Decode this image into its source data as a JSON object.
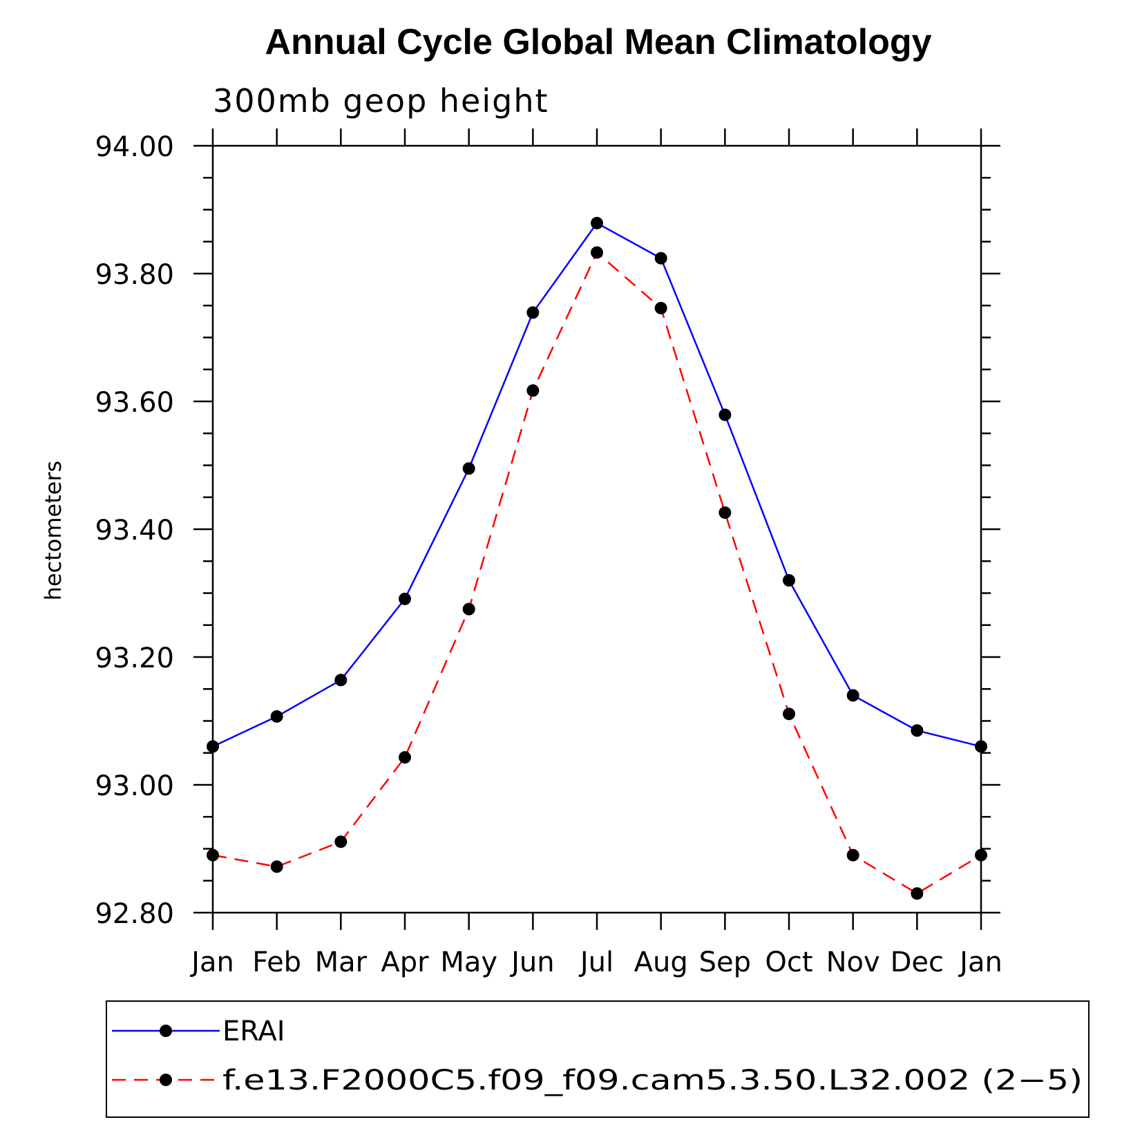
{
  "chart_data": {
    "type": "line",
    "title": "Annual Cycle Global Mean Climatology",
    "subtitle": "300mb geop height",
    "xlabel": "",
    "ylabel": "hectometers",
    "categories": [
      "Jan",
      "Feb",
      "Mar",
      "Apr",
      "May",
      "Jun",
      "Jul",
      "Aug",
      "Sep",
      "Oct",
      "Nov",
      "Dec",
      "Jan"
    ],
    "ylim": [
      92.8,
      94.0
    ],
    "yticks": [
      "92.80",
      "93.00",
      "93.20",
      "93.40",
      "93.60",
      "93.80",
      "94.00"
    ],
    "grid": false,
    "legend_position": "bottom",
    "series": [
      {
        "name": "ERAI",
        "color": "#0000ff",
        "dash": "solid",
        "marker": "circle",
        "values": [
          93.06,
          93.107,
          93.164,
          93.291,
          93.495,
          93.739,
          93.879,
          93.824,
          93.579,
          93.32,
          93.14,
          93.085,
          93.06
        ]
      },
      {
        "name": "f.e13.F2000C5.f09_f09.cam5.3.50.L32.002 (2−5)",
        "color": "#ff0000",
        "dash": "dashed",
        "marker": "circle",
        "values": [
          92.89,
          92.872,
          92.911,
          93.043,
          93.275,
          93.617,
          93.833,
          93.746,
          93.426,
          93.111,
          92.89,
          92.83,
          92.89
        ]
      }
    ]
  }
}
